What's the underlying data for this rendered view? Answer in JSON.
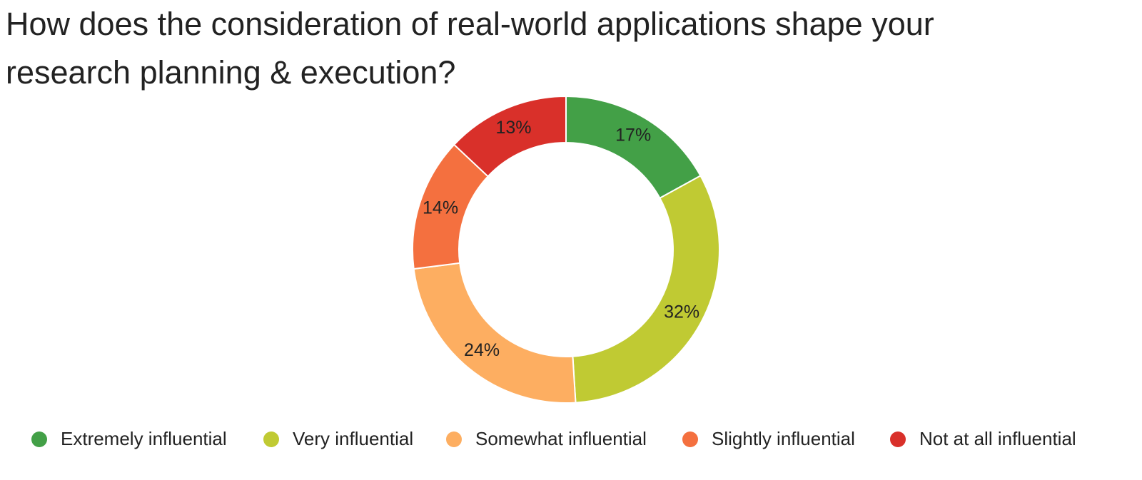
{
  "chart_data": {
    "type": "donut",
    "title": "How does the consideration of real-world applications shape your research planning & execution?",
    "categories": [
      "Extremely influential",
      "Very influential",
      "Somewhat influential",
      "Slightly influential",
      "Not at all influential"
    ],
    "values": [
      17,
      32,
      24,
      14,
      13
    ],
    "value_labels": [
      "17%",
      "32%",
      "24%",
      "14%",
      "13%"
    ],
    "colors": [
      "#43a047",
      "#c0ca33",
      "#fdae61",
      "#f4703f",
      "#d9302a"
    ],
    "legend": "bottom"
  }
}
